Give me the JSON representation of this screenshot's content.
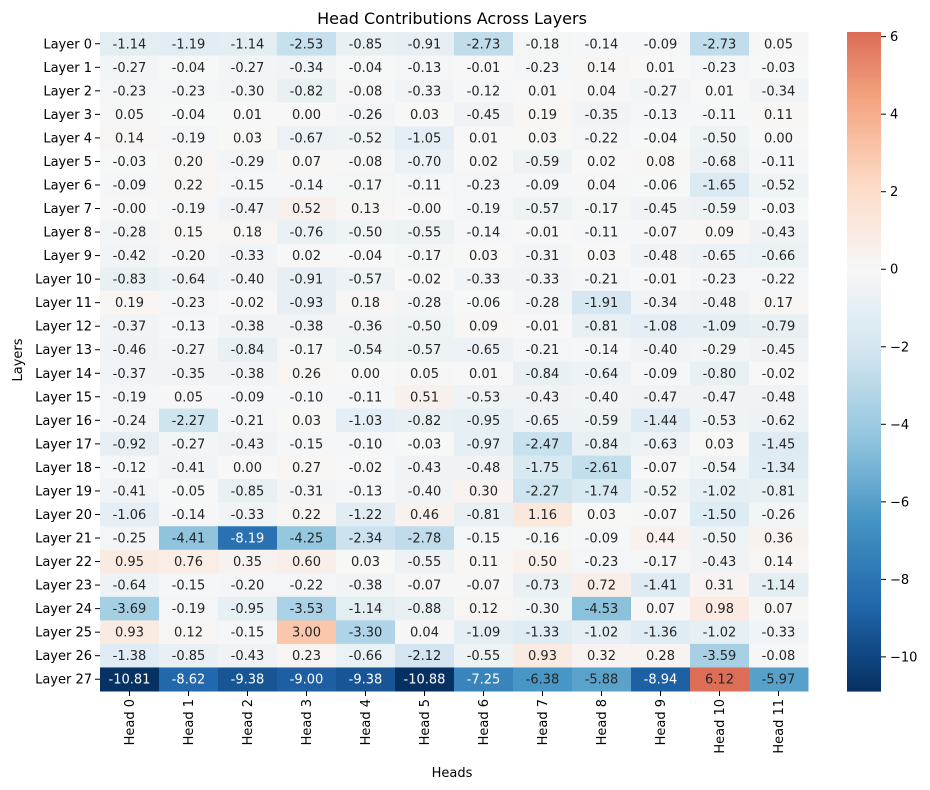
{
  "chart_data": {
    "type": "heatmap",
    "title": "Head Contributions Across Layers",
    "xlabel": "Heads",
    "ylabel": "Layers",
    "columns": [
      "Head 0",
      "Head 1",
      "Head 2",
      "Head 3",
      "Head 4",
      "Head 5",
      "Head 6",
      "Head 7",
      "Head 8",
      "Head 9",
      "Head 10",
      "Head 11"
    ],
    "rows": [
      "Layer 0",
      "Layer 1",
      "Layer 2",
      "Layer 3",
      "Layer 4",
      "Layer 5",
      "Layer 6",
      "Layer 7",
      "Layer 8",
      "Layer 9",
      "Layer 10",
      "Layer 11",
      "Layer 12",
      "Layer 13",
      "Layer 14",
      "Layer 15",
      "Layer 16",
      "Layer 17",
      "Layer 18",
      "Layer 19",
      "Layer 20",
      "Layer 21",
      "Layer 22",
      "Layer 23",
      "Layer 24",
      "Layer 25",
      "Layer 26",
      "Layer 27"
    ],
    "values": [
      [
        "-1.14",
        "-1.19",
        "-1.14",
        "-2.53",
        "-0.85",
        "-0.91",
        "-2.73",
        "-0.18",
        "-0.14",
        "-0.09",
        "-2.73",
        "0.05"
      ],
      [
        "-0.27",
        "-0.04",
        "-0.27",
        "-0.34",
        "-0.04",
        "-0.13",
        "-0.01",
        "-0.23",
        "0.14",
        "0.01",
        "-0.23",
        "-0.03"
      ],
      [
        "-0.23",
        "-0.23",
        "-0.30",
        "-0.82",
        "-0.08",
        "-0.33",
        "-0.12",
        "0.01",
        "0.04",
        "-0.27",
        "0.01",
        "-0.34"
      ],
      [
        "0.05",
        "-0.04",
        "0.01",
        "0.00",
        "-0.26",
        "0.03",
        "-0.45",
        "0.19",
        "-0.35",
        "-0.13",
        "-0.11",
        "0.11"
      ],
      [
        "0.14",
        "-0.19",
        "0.03",
        "-0.67",
        "-0.52",
        "-1.05",
        "0.01",
        "0.03",
        "-0.22",
        "-0.04",
        "-0.50",
        "0.00"
      ],
      [
        "-0.03",
        "0.20",
        "-0.29",
        "0.07",
        "-0.08",
        "-0.70",
        "0.02",
        "-0.59",
        "0.02",
        "0.08",
        "-0.68",
        "-0.11"
      ],
      [
        "-0.09",
        "0.22",
        "-0.15",
        "-0.14",
        "-0.17",
        "-0.11",
        "-0.23",
        "-0.09",
        "0.04",
        "-0.06",
        "-1.65",
        "-0.52"
      ],
      [
        "-0.00",
        "-0.19",
        "-0.47",
        "0.52",
        "0.13",
        "-0.00",
        "-0.19",
        "-0.57",
        "-0.17",
        "-0.45",
        "-0.59",
        "-0.03"
      ],
      [
        "-0.28",
        "0.15",
        "0.18",
        "-0.76",
        "-0.50",
        "-0.55",
        "-0.14",
        "-0.01",
        "-0.11",
        "-0.07",
        "0.09",
        "-0.43"
      ],
      [
        "-0.42",
        "-0.20",
        "-0.33",
        "0.02",
        "-0.04",
        "-0.17",
        "0.03",
        "-0.31",
        "0.03",
        "-0.48",
        "-0.65",
        "-0.66"
      ],
      [
        "-0.83",
        "-0.64",
        "-0.40",
        "-0.91",
        "-0.57",
        "-0.02",
        "-0.33",
        "-0.33",
        "-0.21",
        "-0.01",
        "-0.23",
        "-0.22"
      ],
      [
        "0.19",
        "-0.23",
        "-0.02",
        "-0.93",
        "0.18",
        "-0.28",
        "-0.06",
        "-0.28",
        "-1.91",
        "-0.34",
        "-0.48",
        "0.17"
      ],
      [
        "-0.37",
        "-0.13",
        "-0.38",
        "-0.38",
        "-0.36",
        "-0.50",
        "0.09",
        "-0.01",
        "-0.81",
        "-1.08",
        "-1.09",
        "-0.79"
      ],
      [
        "-0.46",
        "-0.27",
        "-0.84",
        "-0.17",
        "-0.54",
        "-0.57",
        "-0.65",
        "-0.21",
        "-0.14",
        "-0.40",
        "-0.29",
        "-0.45"
      ],
      [
        "-0.37",
        "-0.35",
        "-0.38",
        "0.26",
        "0.00",
        "0.05",
        "0.01",
        "-0.84",
        "-0.64",
        "-0.09",
        "-0.80",
        "-0.02"
      ],
      [
        "-0.19",
        "0.05",
        "-0.09",
        "-0.10",
        "-0.11",
        "0.51",
        "-0.53",
        "-0.43",
        "-0.40",
        "-0.47",
        "-0.47",
        "-0.48"
      ],
      [
        "-0.24",
        "-2.27",
        "-0.21",
        "0.03",
        "-1.03",
        "-0.82",
        "-0.95",
        "-0.65",
        "-0.59",
        "-1.44",
        "-0.53",
        "-0.62"
      ],
      [
        "-0.92",
        "-0.27",
        "-0.43",
        "-0.15",
        "-0.10",
        "-0.03",
        "-0.97",
        "-2.47",
        "-0.84",
        "-0.63",
        "0.03",
        "-1.45"
      ],
      [
        "-0.12",
        "-0.41",
        "0.00",
        "0.27",
        "-0.02",
        "-0.43",
        "-0.48",
        "-1.75",
        "-2.61",
        "-0.07",
        "-0.54",
        "-1.34"
      ],
      [
        "-0.41",
        "-0.05",
        "-0.85",
        "-0.31",
        "-0.13",
        "-0.40",
        "0.30",
        "-2.27",
        "-1.74",
        "-0.52",
        "-1.02",
        "-0.81"
      ],
      [
        "-1.06",
        "-0.14",
        "-0.33",
        "0.22",
        "-1.22",
        "0.46",
        "-0.81",
        "1.16",
        "0.03",
        "-0.07",
        "-1.50",
        "-0.26"
      ],
      [
        "-0.25",
        "-4.41",
        "-8.19",
        "-4.25",
        "-2.34",
        "-2.78",
        "-0.15",
        "-0.16",
        "-0.09",
        "0.44",
        "-0.50",
        "0.36"
      ],
      [
        "0.95",
        "0.76",
        "0.35",
        "0.60",
        "0.03",
        "-0.55",
        "0.11",
        "0.50",
        "-0.23",
        "-0.17",
        "-0.43",
        "0.14"
      ],
      [
        "-0.64",
        "-0.15",
        "-0.20",
        "-0.22",
        "-0.38",
        "-0.07",
        "-0.07",
        "-0.73",
        "0.72",
        "-1.41",
        "0.31",
        "-1.14"
      ],
      [
        "-3.69",
        "-0.19",
        "-0.95",
        "-3.53",
        "-1.14",
        "-0.88",
        "0.12",
        "-0.30",
        "-4.53",
        "0.07",
        "0.98",
        "0.07"
      ],
      [
        "0.93",
        "0.12",
        "-0.15",
        "3.00",
        "-3.30",
        "0.04",
        "-1.09",
        "-1.33",
        "-1.02",
        "-1.36",
        "-1.02",
        "-0.33"
      ],
      [
        "-1.38",
        "-0.85",
        "-0.43",
        "0.23",
        "-0.66",
        "-2.12",
        "-0.55",
        "0.93",
        "0.32",
        "0.28",
        "-3.59",
        "-0.08"
      ],
      [
        "-10.81",
        "-8.62",
        "-9.38",
        "-9.00",
        "-9.38",
        "-10.88",
        "-7.25",
        "-6.38",
        "-5.88",
        "-8.94",
        "6.12",
        "-5.97"
      ]
    ],
    "vmin": -10.88,
    "vmax": 6.12,
    "colormap": "RdBu_r",
    "colorbar_ticks": [
      "6",
      "4",
      "2",
      "0",
      "−2",
      "−4",
      "−6",
      "−8",
      "−10"
    ],
    "colorbar_tick_values": [
      6,
      4,
      2,
      0,
      -2,
      -4,
      -6,
      -8,
      -10
    ],
    "colorbar_placement": "right"
  }
}
